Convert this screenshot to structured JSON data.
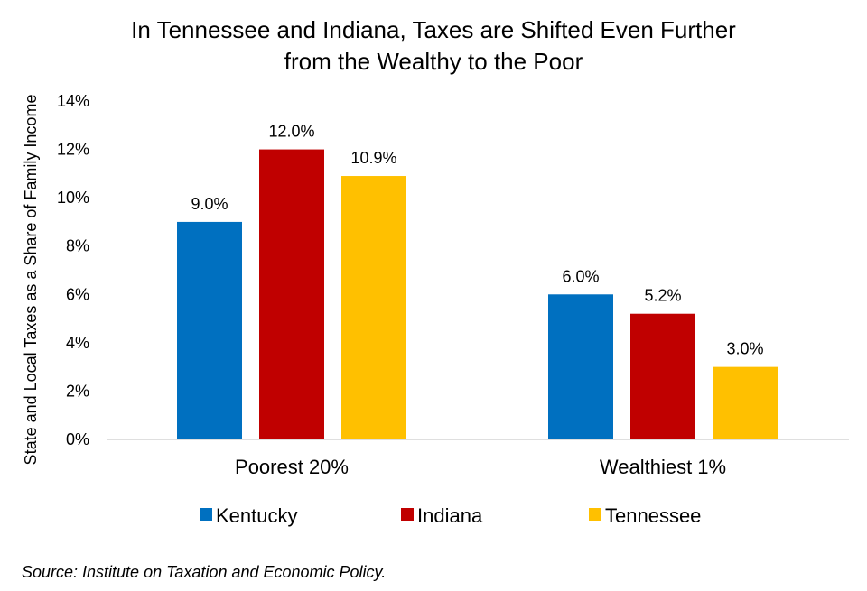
{
  "chart_data": {
    "type": "bar",
    "title_lines": [
      "In Tennessee and Indiana, Taxes are Shifted Even Further",
      "from the Wealthy to the Poor"
    ],
    "ylabel": "State and Local Taxes as a Share of Family Income",
    "xlabel": "",
    "ylim": [
      0,
      14
    ],
    "yticks": [
      0,
      2,
      4,
      6,
      8,
      10,
      12,
      14
    ],
    "ytick_labels": [
      "0%",
      "2%",
      "4%",
      "6%",
      "8%",
      "10%",
      "12%",
      "14%"
    ],
    "categories": [
      "Poorest 20%",
      "Wealthiest 1%"
    ],
    "series": [
      {
        "name": "Kentucky",
        "color": "#0070C0",
        "values": [
          9.0,
          6.0
        ],
        "labels": [
          "9.0%",
          "6.0%"
        ]
      },
      {
        "name": "Indiana",
        "color": "#C00000",
        "values": [
          12.0,
          5.2
        ],
        "labels": [
          "12.0%",
          "5.2%"
        ]
      },
      {
        "name": "Tennessee",
        "color": "#FFC000",
        "values": [
          10.9,
          3.0
        ],
        "labels": [
          "10.9%",
          "3.0%"
        ]
      }
    ],
    "legend_position": "bottom",
    "grid": false
  },
  "source": "Source: Institute on Taxation and Economic Policy."
}
